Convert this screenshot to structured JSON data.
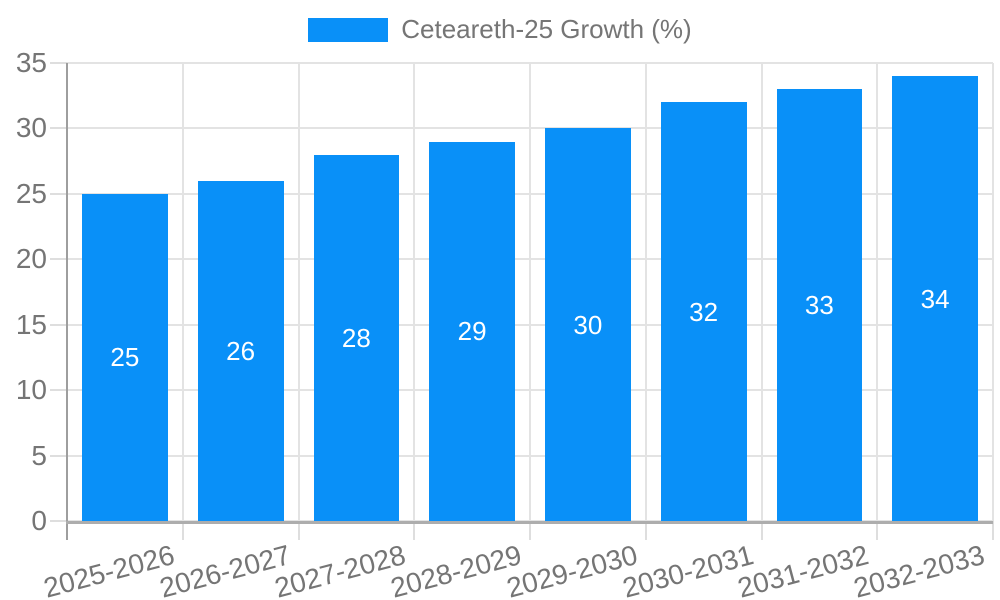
{
  "chart_data": {
    "type": "bar",
    "legend_label": "Ceteareth-25 Growth (%)",
    "categories": [
      "2025-2026",
      "2026-2027",
      "2027-2028",
      "2028-2029",
      "2029-2030",
      "2030-2031",
      "2031-2032",
      "2032-2033"
    ],
    "values": [
      25,
      26,
      28,
      29,
      30,
      32,
      33,
      34
    ],
    "yticks": [
      0,
      5,
      10,
      15,
      20,
      25,
      30,
      35
    ],
    "ylim": [
      0,
      35
    ],
    "grid": true,
    "legend_position": "top-center",
    "x_label_rotation_deg": -15,
    "bar_color": "#0990f8",
    "value_label_color": "#ffffff",
    "axis_text_color": "#757575",
    "gridline_color": "#e3e3e3"
  }
}
